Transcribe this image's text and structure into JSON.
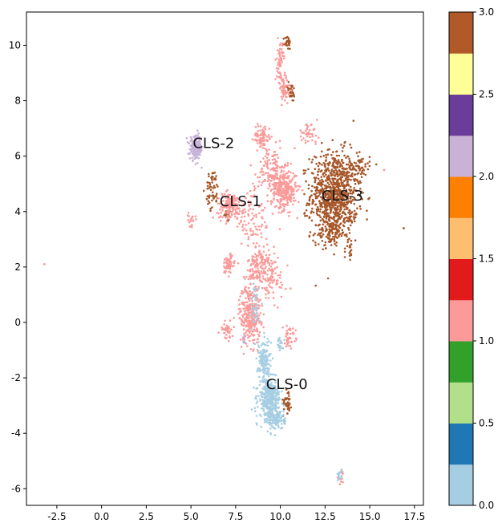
{
  "chart_data": {
    "type": "scatter",
    "title": "",
    "xlabel": "",
    "ylabel": "",
    "xlim": [
      -4.2,
      18.0
    ],
    "ylim": [
      -6.6,
      11.2
    ],
    "xticks": [
      "-2.5",
      "0.0",
      "2.5",
      "5.0",
      "7.5",
      "10.0",
      "12.5",
      "15.0",
      "17.5"
    ],
    "xtick_values": [
      -2.5,
      0,
      2.5,
      5,
      7.5,
      10,
      12.5,
      15,
      17.5
    ],
    "yticks": [
      "-6",
      "-4",
      "-2",
      "0",
      "2",
      "4",
      "6",
      "8",
      "10"
    ],
    "ytick_values": [
      -6,
      -4,
      -2,
      0,
      2,
      4,
      6,
      8,
      10
    ],
    "grid": false,
    "colormap": "Paired",
    "colormap_colors": [
      "#a6cee3",
      "#1f78b4",
      "#b2df8a",
      "#33a02c",
      "#fb9a99",
      "#e31a1c",
      "#fdbf6f",
      "#ff7f00",
      "#cab2d6",
      "#6a3d9a",
      "#ffff99",
      "#b15928"
    ],
    "colorbar": {
      "range": [
        0.0,
        3.0
      ],
      "ticks": [
        "0.0",
        "0.5",
        "1.0",
        "1.5",
        "2.0",
        "2.5",
        "3.0"
      ],
      "tick_values": [
        0.0,
        0.5,
        1.0,
        1.5,
        2.0,
        2.5,
        3.0
      ]
    },
    "cluster_labels": [
      {
        "text": "CLS-0",
        "x": 9.2,
        "y": -2.4
      },
      {
        "text": "CLS-1",
        "x": 6.6,
        "y": 4.2
      },
      {
        "text": "CLS-2",
        "x": 5.1,
        "y": 6.3
      },
      {
        "text": "CLS-3",
        "x": 12.3,
        "y": 4.4
      }
    ],
    "clusters": [
      {
        "label": 3,
        "color": "#a65628",
        "blobs": [
          [
            13.0,
            4.6,
            1.1,
            1.3,
            900
          ],
          [
            12.8,
            3.2,
            0.6,
            0.4,
            80
          ],
          [
            10.4,
            10.1,
            0.15,
            0.2,
            30
          ],
          [
            10.6,
            8.3,
            0.2,
            0.3,
            30
          ],
          [
            14.0,
            3.8,
            0.4,
            0.2,
            20
          ],
          [
            13.9,
            2.7,
            0.2,
            0.3,
            15
          ],
          [
            6.2,
            4.8,
            0.3,
            0.6,
            60
          ],
          [
            10.4,
            -2.8,
            0.2,
            0.4,
            40
          ],
          [
            7.0,
            3.9,
            0.2,
            0.2,
            20
          ],
          [
            14.4,
            5.6,
            0.5,
            0.4,
            60
          ]
        ]
      },
      {
        "label": 1,
        "color": "#fb9a99",
        "blobs": [
          [
            10.2,
            4.8,
            0.6,
            0.6,
            300
          ],
          [
            8.3,
            0.3,
            0.5,
            0.9,
            300
          ],
          [
            8.8,
            2.0,
            0.5,
            0.7,
            150
          ],
          [
            7.2,
            4.2,
            0.6,
            0.4,
            150
          ],
          [
            9.0,
            6.7,
            0.4,
            0.4,
            80
          ],
          [
            9.5,
            5.5,
            0.6,
            0.6,
            120
          ],
          [
            10.2,
            8.4,
            0.3,
            0.5,
            60
          ],
          [
            10.0,
            9.4,
            0.15,
            0.6,
            60
          ],
          [
            7.1,
            2.1,
            0.3,
            0.3,
            60
          ],
          [
            7.0,
            -0.3,
            0.3,
            0.3,
            40
          ],
          [
            10.5,
            -0.5,
            0.3,
            0.3,
            40
          ],
          [
            9.5,
            1.5,
            0.8,
            0.8,
            80
          ],
          [
            8.5,
            3.8,
            1.0,
            1.0,
            100
          ],
          [
            5.0,
            3.7,
            0.2,
            0.2,
            20
          ],
          [
            13.4,
            -5.6,
            0.15,
            0.15,
            15
          ],
          [
            11.5,
            6.8,
            0.5,
            0.3,
            40
          ]
        ]
      },
      {
        "label": 2,
        "color": "#c7b3d8",
        "blobs": [
          [
            5.3,
            6.3,
            0.3,
            0.35,
            200
          ],
          [
            8.0,
            -0.6,
            0.1,
            0.2,
            10
          ]
        ]
      },
      {
        "label": 0,
        "color": "#a6cee3",
        "blobs": [
          [
            9.4,
            -2.8,
            0.5,
            0.6,
            350
          ],
          [
            9.1,
            -1.4,
            0.3,
            0.7,
            150
          ],
          [
            9.8,
            -3.5,
            0.4,
            0.3,
            100
          ],
          [
            8.6,
            0.5,
            0.2,
            0.8,
            40
          ],
          [
            13.3,
            -5.5,
            0.1,
            0.2,
            15
          ],
          [
            10.0,
            -0.8,
            0.2,
            0.2,
            20
          ]
        ]
      }
    ],
    "outliers": [
      {
        "x": -3.2,
        "y": 2.1,
        "color": "#fb9a99"
      },
      {
        "x": 16.9,
        "y": 3.4,
        "color": "#a65628"
      },
      {
        "x": 15.8,
        "y": 5.5,
        "color": "#fb9a99"
      }
    ]
  }
}
